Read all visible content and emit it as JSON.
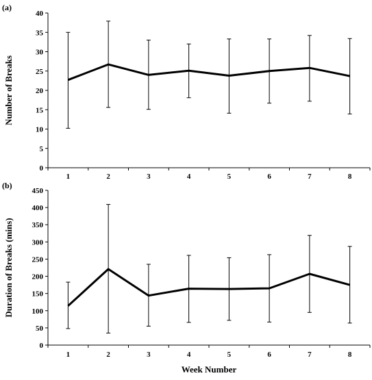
{
  "chart_data": [
    {
      "type": "line",
      "panel_label": "(a)",
      "title": "",
      "xlabel": "",
      "ylabel": "Number of Breaks",
      "x": [
        "1",
        "2",
        "3",
        "4",
        "5",
        "6",
        "7",
        "8"
      ],
      "ylim": [
        0,
        40
      ],
      "yticks": [
        0,
        5,
        10,
        15,
        20,
        25,
        30,
        35,
        40
      ],
      "grid": false,
      "legend": "none",
      "series": [
        {
          "values": [
            22.7,
            26.7,
            24.0,
            25.1,
            23.8,
            25.0,
            25.8,
            23.7
          ],
          "error_low": [
            10.2,
            15.6,
            15.1,
            18.1,
            14.1,
            16.7,
            17.2,
            13.9
          ],
          "error_high": [
            35.0,
            37.9,
            33.0,
            32.0,
            33.3,
            33.3,
            34.2,
            33.4
          ]
        }
      ]
    },
    {
      "type": "line",
      "panel_label": "(b)",
      "title": "",
      "xlabel": "Week Number",
      "ylabel": "Duration of Breaks (mins)",
      "x": [
        "1",
        "2",
        "3",
        "4",
        "5",
        "6",
        "7",
        "8"
      ],
      "ylim": [
        0,
        450
      ],
      "yticks": [
        0,
        50,
        100,
        150,
        200,
        250,
        300,
        350,
        400,
        450
      ],
      "grid": false,
      "legend": "none",
      "series": [
        {
          "values": [
            114,
            221,
            144,
            164,
            163,
            165,
            207,
            175
          ],
          "error_low": [
            48,
            35,
            55,
            66,
            72,
            67,
            95,
            64
          ],
          "error_high": [
            183,
            409,
            235,
            261,
            254,
            263,
            319,
            287
          ]
        }
      ]
    }
  ]
}
